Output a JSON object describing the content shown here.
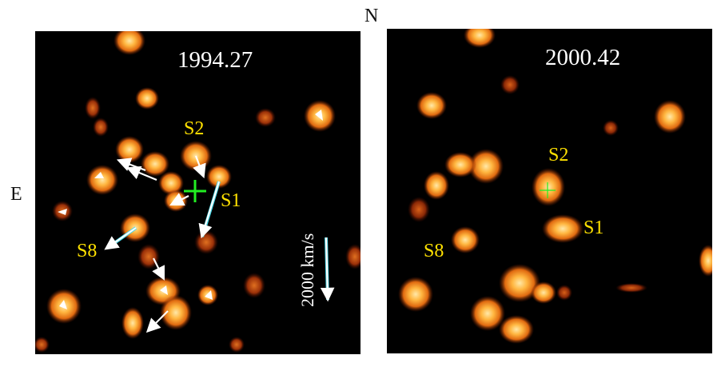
{
  "compass": {
    "north": "N",
    "east": "E"
  },
  "panels": [
    {
      "epoch": "1994.27",
      "stars": [
        {
          "name": "S2"
        },
        {
          "name": "S1"
        },
        {
          "name": "S8"
        }
      ],
      "scale_label": "2000 km/s"
    },
    {
      "epoch": "2000.42",
      "stars": [
        {
          "name": "S2"
        },
        {
          "name": "S1"
        },
        {
          "name": "S8"
        }
      ]
    }
  ],
  "colors": {
    "background": "#000000",
    "star_core": "#ffe6a0",
    "star_mid": "#ff9a1c",
    "star_edge": "#8a2a00",
    "star_label": "#ffe100",
    "velocity_arrow": "#ffffff",
    "velocity_arrow_shadow": "#48d8e8",
    "center_marker": "#22ee22"
  }
}
